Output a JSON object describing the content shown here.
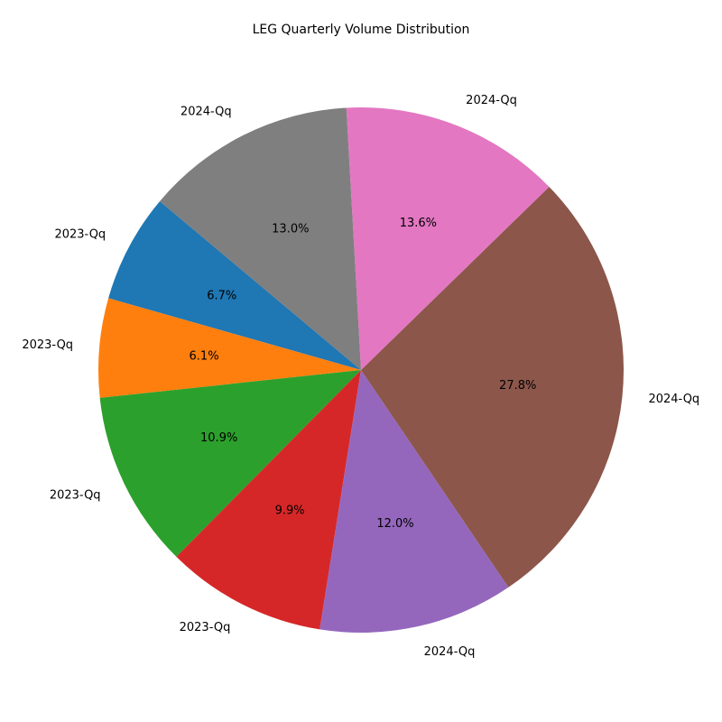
{
  "chart_data": {
    "type": "pie",
    "title": "LEG Quarterly Volume Distribution",
    "categories": [
      "2023-Qq",
      "2023-Qq",
      "2023-Qq",
      "2023-Qq",
      "2024-Qq",
      "2024-Qq",
      "2024-Qq",
      "2024-Qq"
    ],
    "values": [
      6.7,
      6.1,
      10.9,
      9.9,
      12.0,
      27.8,
      13.6,
      13.0
    ],
    "value_labels": [
      "6.7%",
      "6.1%",
      "10.9%",
      "9.9%",
      "12.0%",
      "27.8%",
      "13.6%",
      "13.0%"
    ],
    "colors": [
      "#1f77b4",
      "#ff7f0e",
      "#2ca02c",
      "#d62728",
      "#9467bd",
      "#8c564b",
      "#e377c2",
      "#7f7f7f"
    ],
    "start_angle_deg": 140,
    "direction": "counterclockwise"
  }
}
